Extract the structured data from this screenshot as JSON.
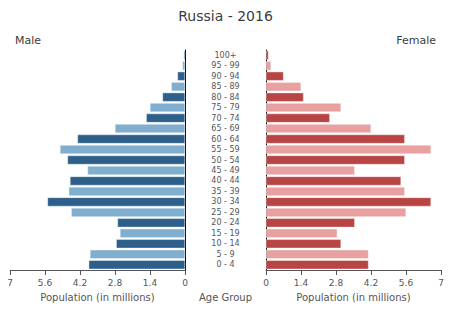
{
  "chart_data": {
    "type": "bar",
    "orientation": "horizontal",
    "title": "Russia - 2016",
    "xlabel": "Population (in millions)",
    "ylabel": "Age Group",
    "categories": [
      "100+",
      "95 - 99",
      "90 - 94",
      "85 - 89",
      "80 - 84",
      "75 - 79",
      "70 - 74",
      "65 - 69",
      "60 - 64",
      "55 - 59",
      "50 - 54",
      "45 - 49",
      "40 - 44",
      "35 - 39",
      "30 - 34",
      "25 - 29",
      "20 - 24",
      "15 - 19",
      "10 - 14",
      "5 - 9",
      "0 - 4"
    ],
    "series": [
      {
        "name": "Male",
        "values": [
          0.05,
          0.1,
          0.3,
          0.55,
          0.9,
          1.4,
          1.55,
          2.8,
          4.3,
          5.0,
          4.7,
          3.9,
          4.6,
          4.65,
          5.5,
          4.55,
          2.7,
          2.6,
          2.75,
          3.8,
          3.85
        ],
        "colors": [
          "#2e5f8a",
          "#7faecf",
          "#2e5f8a",
          "#7faecf",
          "#2e5f8a",
          "#7faecf",
          "#2e5f8a",
          "#7faecf",
          "#2e5f8a",
          "#7faecf",
          "#2e5f8a",
          "#7faecf",
          "#2e5f8a",
          "#7faecf",
          "#2e5f8a",
          "#7faecf",
          "#2e5f8a",
          "#7faecf",
          "#2e5f8a",
          "#7faecf",
          "#2e5f8a"
        ]
      },
      {
        "name": "Female",
        "values": [
          0.1,
          0.2,
          0.7,
          1.4,
          1.5,
          3.0,
          2.55,
          4.2,
          5.55,
          6.6,
          5.55,
          3.55,
          5.4,
          5.55,
          6.6,
          5.6,
          3.55,
          2.85,
          3.0,
          4.1,
          4.1
        ],
        "colors": [
          "#b84444",
          "#e8a0a0",
          "#b84444",
          "#e8a0a0",
          "#b84444",
          "#e8a0a0",
          "#b84444",
          "#e8a0a0",
          "#b84444",
          "#e8a0a0",
          "#b84444",
          "#e8a0a0",
          "#b84444",
          "#e8a0a0",
          "#b84444",
          "#e8a0a0",
          "#b84444",
          "#e8a0a0",
          "#b84444",
          "#e8a0a0",
          "#b84444"
        ]
      }
    ],
    "xlim": [
      0,
      7
    ],
    "xticks": [
      0,
      1.4,
      2.8,
      4.2,
      5.6,
      7
    ],
    "grid": false
  }
}
